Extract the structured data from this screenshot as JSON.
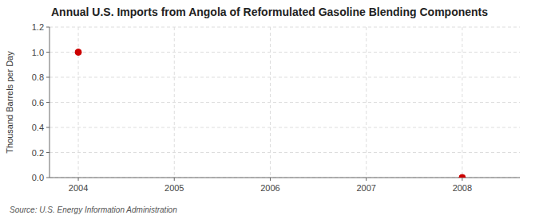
{
  "chart_data": {
    "type": "scatter",
    "title": "Annual U.S. Imports from Angola of Reformulated Gasoline Blending Components",
    "y_label": "Thousand Barrels per Day",
    "annotations": [
      "Source: U.S. Energy Information Administration"
    ],
    "x": [
      2004,
      2008
    ],
    "values": [
      1.0,
      0.0
    ],
    "color": "#cc0000",
    "marker": "circle",
    "xlim": [
      2003.7,
      2008.6
    ],
    "ylim": [
      0.0,
      1.2
    ],
    "xticks": [
      2004,
      2005,
      2006,
      2007,
      2008
    ],
    "yticks": [
      {
        "value": 0.0,
        "label": "0.0"
      },
      0.2,
      0.4,
      0.6,
      0.8,
      {
        "value": 1.0,
        "label": "1.0"
      },
      1.2
    ],
    "grid": true
  }
}
